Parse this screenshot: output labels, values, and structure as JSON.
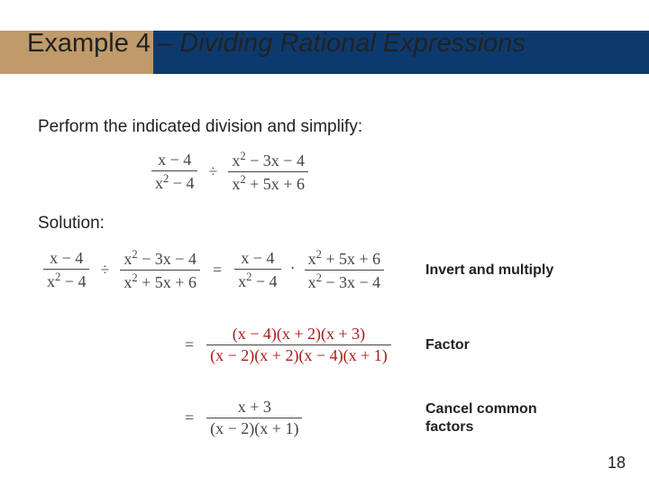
{
  "title": {
    "prefix": "Example 4 – ",
    "italic": "Dividing Rational Expressions"
  },
  "prompt": "Perform the indicated division and simplify:",
  "main_expr": {
    "left": {
      "num": "x − 4",
      "den": "x² − 4"
    },
    "op": "÷",
    "right": {
      "num": "x² − 3x − 4",
      "den": "x² + 5x + 6"
    }
  },
  "solution_label": "Solution:",
  "steps": [
    {
      "lhs": {
        "left": {
          "num": "x − 4",
          "den": "x² − 4"
        },
        "op": "÷",
        "right": {
          "num": "x² − 3x − 4",
          "den": "x² + 5x + 6"
        }
      },
      "rhs": {
        "left": {
          "num": "x − 4",
          "den": "x² − 4"
        },
        "op": "·",
        "right": {
          "num": "x² + 5x + 6",
          "den": "x² − 3x − 4"
        }
      },
      "annotation": "Invert and multiply"
    },
    {
      "rhs_single": {
        "num": "(x − 4)(x + 2)(x + 3)",
        "den": "(x − 2)(x + 2)(x − 4)(x + 1)"
      },
      "annotation": "Factor",
      "red": true
    },
    {
      "rhs_single": {
        "num": "x + 3",
        "den": "(x − 2)(x + 1)"
      },
      "annotation": "Cancel common factors"
    }
  ],
  "page_number": "18",
  "colors": {
    "title_left": "#bf9a6a",
    "title_right": "#0d3a6e",
    "red": "#aa1a1a",
    "text": "#222222",
    "math": "#444444"
  }
}
